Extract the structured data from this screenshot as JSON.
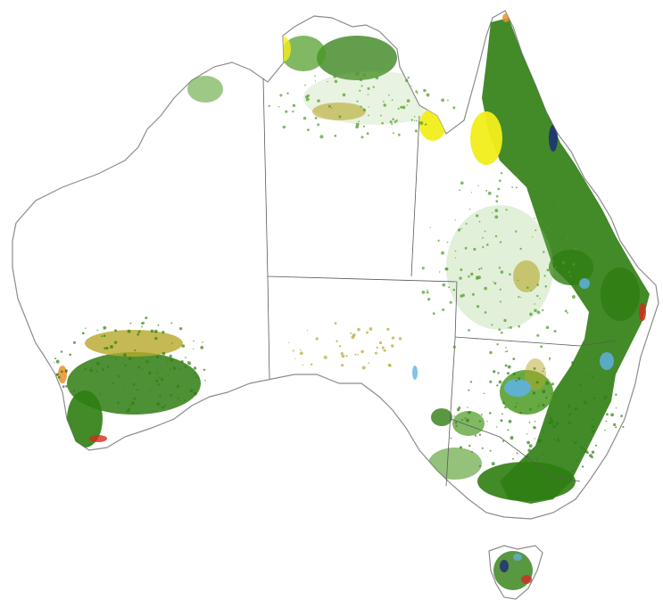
{
  "map": {
    "region": "Australia",
    "labels_visible": false,
    "background_color": "#ffffff",
    "coastline_color": "#8c8c8c",
    "border_color": "#5a5a5a",
    "vegetation_palette": {
      "dense_green": "#2f7d12",
      "mid_green": "#4c9a22",
      "light_green": "#8bc36a",
      "olive": "#b5a72a",
      "yellow": "#f2ee1a",
      "orange": "#e8922c",
      "red": "#d42a1e",
      "light_blue": "#5fb3e8",
      "navy": "#1c2a78"
    }
  }
}
